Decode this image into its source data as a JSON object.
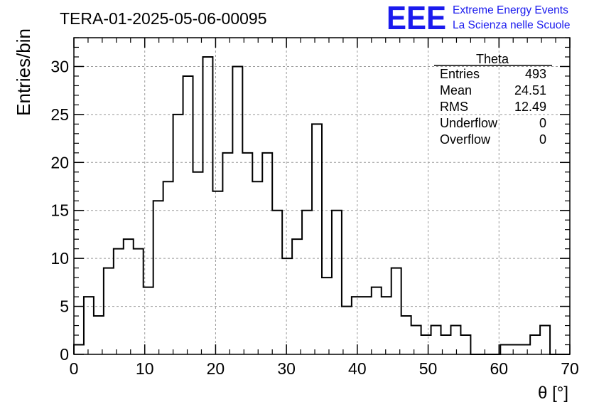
{
  "chart_data": {
    "type": "bar",
    "title": "TERA-01-2025-05-06-00095",
    "xlabel": "θ [°]",
    "ylabel": "Entries/bin",
    "xlim": [
      0,
      70
    ],
    "ylim": [
      0,
      33
    ],
    "grid": true,
    "bin_width": 1.4,
    "xticks": [
      "0",
      "10",
      "20",
      "30",
      "40",
      "50",
      "60",
      "70"
    ],
    "yticks": [
      "0",
      "5",
      "10",
      "15",
      "20",
      "25",
      "30"
    ],
    "values": [
      1,
      6,
      4,
      9,
      11,
      12,
      11,
      7,
      16,
      18,
      25,
      29,
      19,
      31,
      17,
      21,
      30,
      21,
      18,
      21,
      15,
      10,
      12,
      15,
      24,
      8,
      15,
      5,
      6,
      6,
      7,
      6,
      9,
      4,
      3,
      2,
      3,
      2,
      3,
      2,
      0,
      0,
      0,
      1,
      1,
      1,
      2,
      3,
      0,
      0
    ]
  },
  "stats": {
    "title": "Theta",
    "rows": [
      {
        "label": "Entries",
        "value": "493"
      },
      {
        "label": "Mean",
        "value": "24.51"
      },
      {
        "label": "RMS",
        "value": "12.49"
      },
      {
        "label": "Underflow",
        "value": "0"
      },
      {
        "label": "Overflow",
        "value": "0"
      }
    ]
  },
  "logo": {
    "mark": "EEE",
    "line1": "Extreme Energy Events",
    "line2": "La Scienza nelle Scuole",
    "color": "#1a1aee"
  }
}
